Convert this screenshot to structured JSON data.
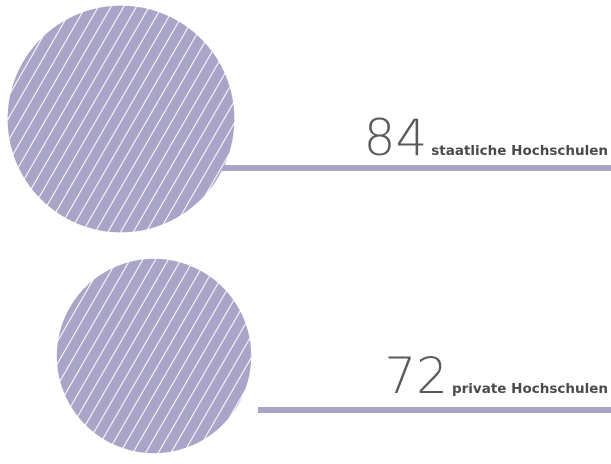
{
  "items": [
    {
      "value": 84,
      "label": "staatliche Hochschulen"
    },
    {
      "value": 72,
      "label": "private Hochschulen"
    }
  ]
}
